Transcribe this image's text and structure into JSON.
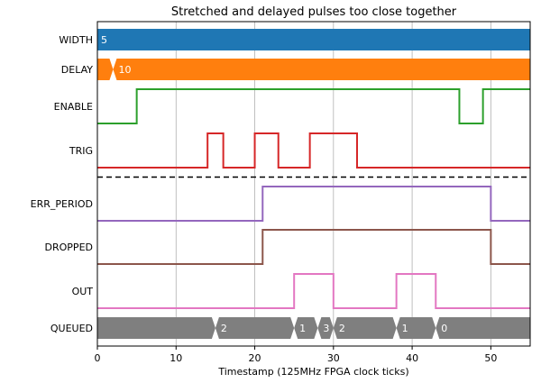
{
  "chart_data": {
    "type": "timing",
    "title": "Stretched and delayed pulses too close together",
    "xlabel": "Timestamp (125MHz FPGA clock ticks)",
    "xlim": [
      0,
      55
    ],
    "xticks": [
      0,
      10,
      20,
      30,
      40,
      50
    ],
    "grid": "vertical",
    "separator_after": "TRIG",
    "signals": [
      {
        "name": "WIDTH",
        "kind": "bus",
        "color": "#1f77b4",
        "segments": [
          {
            "start": 0,
            "end": 55,
            "label": "5"
          }
        ]
      },
      {
        "name": "DELAY",
        "kind": "bus",
        "color": "#ff7f0e",
        "segments": [
          {
            "start": 0,
            "end": 2,
            "label": ""
          },
          {
            "start": 2,
            "end": 55,
            "label": "10"
          }
        ]
      },
      {
        "name": "ENABLE",
        "kind": "digital",
        "color": "#2ca02c",
        "transitions": [
          [
            0,
            0
          ],
          [
            5,
            1
          ],
          [
            46,
            0
          ],
          [
            49,
            1
          ]
        ]
      },
      {
        "name": "TRIG",
        "kind": "digital",
        "color": "#d62728",
        "transitions": [
          [
            0,
            0
          ],
          [
            14,
            1
          ],
          [
            16,
            0
          ],
          [
            20,
            1
          ],
          [
            23,
            0
          ],
          [
            27,
            1
          ],
          [
            33,
            0
          ]
        ]
      },
      {
        "name": "ERR_PERIOD",
        "kind": "digital",
        "color": "#9467bd",
        "transitions": [
          [
            0,
            0
          ],
          [
            21,
            1
          ],
          [
            50,
            0
          ]
        ]
      },
      {
        "name": "DROPPED",
        "kind": "digital",
        "color": "#8c564b",
        "transitions": [
          [
            0,
            0
          ],
          [
            21,
            1
          ],
          [
            50,
            0
          ]
        ]
      },
      {
        "name": "OUT",
        "kind": "digital",
        "color": "#e377c2",
        "transitions": [
          [
            0,
            0
          ],
          [
            25,
            1
          ],
          [
            30,
            0
          ],
          [
            38,
            1
          ],
          [
            43,
            0
          ]
        ]
      },
      {
        "name": "QUEUED",
        "kind": "bus",
        "color": "#7f7f7f",
        "segments": [
          {
            "start": 0,
            "end": 15,
            "label": ""
          },
          {
            "start": 15,
            "end": 25,
            "label": "2"
          },
          {
            "start": 25,
            "end": 28,
            "label": "1"
          },
          {
            "start": 28,
            "end": 30,
            "label": "3"
          },
          {
            "start": 30,
            "end": 38,
            "label": "2"
          },
          {
            "start": 38,
            "end": 43,
            "label": "1"
          },
          {
            "start": 43,
            "end": 55,
            "label": "0"
          }
        ]
      }
    ]
  }
}
